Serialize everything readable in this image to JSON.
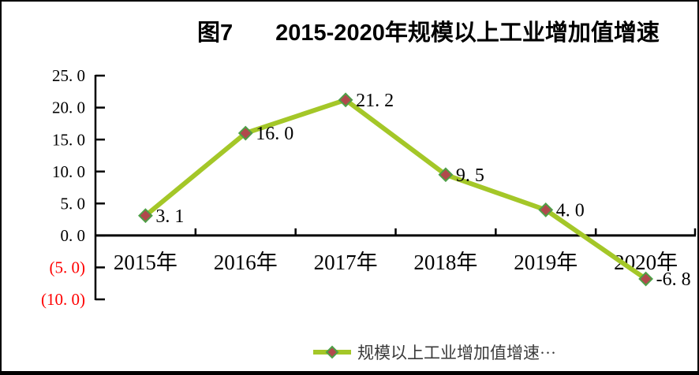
{
  "window": {
    "title_prefix": "图7",
    "title_main": "2015-2020年规模以上工业增加值增速"
  },
  "chart_data": {
    "type": "line",
    "title": "图7 2015-2020年规模以上工业增加值增速",
    "categories": [
      "2015年",
      "2016年",
      "2017年",
      "2018年",
      "2019年",
      "2020年"
    ],
    "series": [
      {
        "name": "规模以上工业增加值增速",
        "values": [
          3.1,
          16.0,
          21.2,
          9.5,
          4.0,
          -6.8
        ],
        "point_labels": [
          "3. 1",
          "16. 0",
          "21. 2",
          "9. 5",
          "4. 0",
          "-6. 8"
        ]
      }
    ],
    "y_axis": {
      "min": -10,
      "max": 25,
      "step": 5,
      "tick_labels": [
        "25. 0",
        "20. 0",
        "15. 0",
        "10. 0",
        "5. 0",
        "0. 0",
        "(5. 0)",
        "(10. 0)"
      ],
      "negative_in_parentheses": true
    },
    "x_axis": {
      "label_suffix": "年"
    },
    "legend": {
      "label": "规模以上工业增加值增速···",
      "position": "bottom"
    },
    "grid": false,
    "ylim": [
      -10,
      25
    ],
    "colors": {
      "line": "#a4c728",
      "marker_fill": "#b1494c",
      "marker_border": "#4e9f47",
      "axis": "#000000",
      "label": "#000000",
      "negative_label": "#ff0000",
      "legend_text": "#3a3a3a"
    }
  }
}
